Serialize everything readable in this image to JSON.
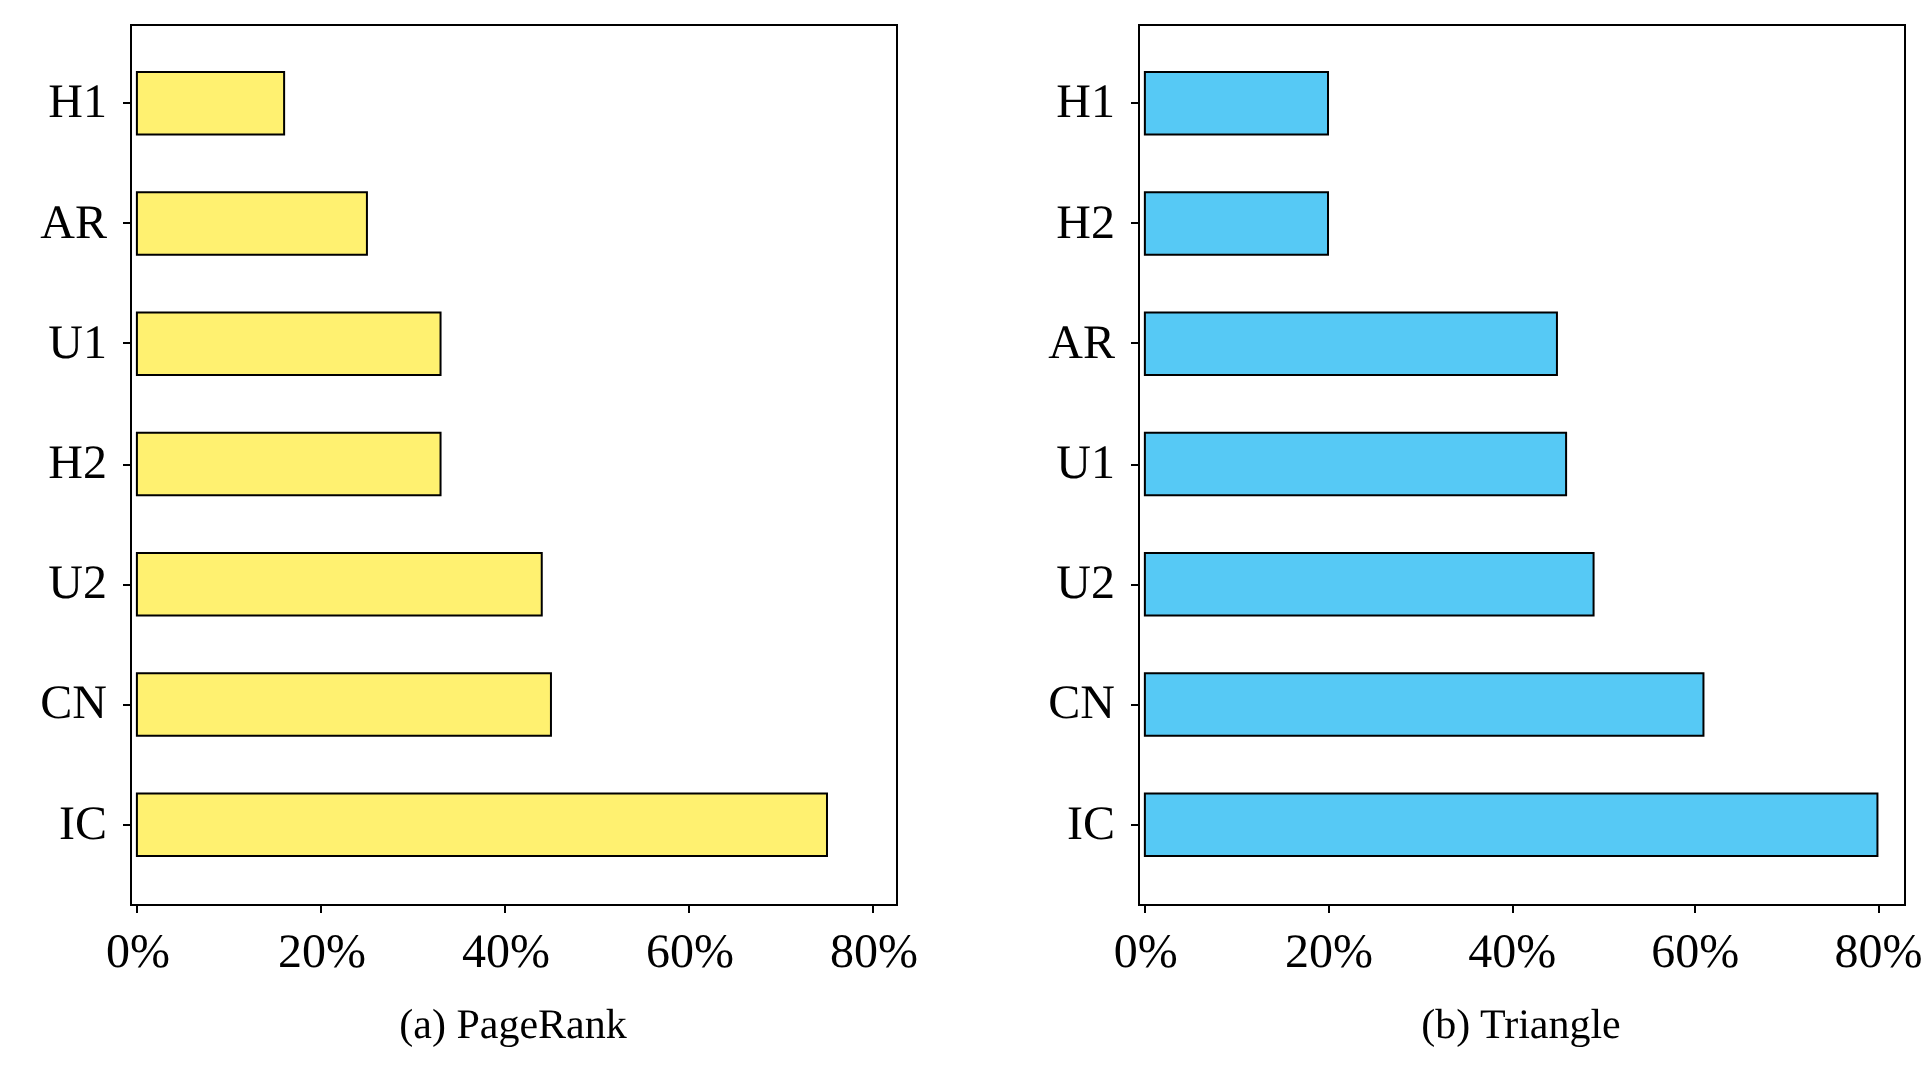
{
  "chart_data": [
    {
      "type": "bar",
      "orientation": "horizontal",
      "title": "(a) PageRank",
      "categories": [
        "H1",
        "AR",
        "U1",
        "H2",
        "U2",
        "CN",
        "IC"
      ],
      "values": [
        16,
        25,
        33,
        33,
        44,
        45,
        75
      ],
      "color": "#fff170",
      "xlim": [
        -0.75,
        82.5
      ],
      "xticks": [
        {
          "value": 0,
          "label": "0%"
        },
        {
          "value": 20,
          "label": "20%"
        },
        {
          "value": 40,
          "label": "40%"
        },
        {
          "value": 60,
          "label": "60%"
        },
        {
          "value": 80,
          "label": "80%"
        }
      ]
    },
    {
      "type": "bar",
      "orientation": "horizontal",
      "title": "(b) Triangle",
      "categories": [
        "H1",
        "H2",
        "AR",
        "U1",
        "U2",
        "CN",
        "IC"
      ],
      "values": [
        20,
        20,
        45,
        46,
        49,
        61,
        80
      ],
      "color": "#56c9f5",
      "xlim": [
        -0.75,
        82.9
      ],
      "xticks": [
        {
          "value": 0,
          "label": "0%"
        },
        {
          "value": 20,
          "label": "20%"
        },
        {
          "value": 40,
          "label": "40%"
        },
        {
          "value": 60,
          "label": "60%"
        },
        {
          "value": 80,
          "label": "80%"
        }
      ]
    }
  ]
}
